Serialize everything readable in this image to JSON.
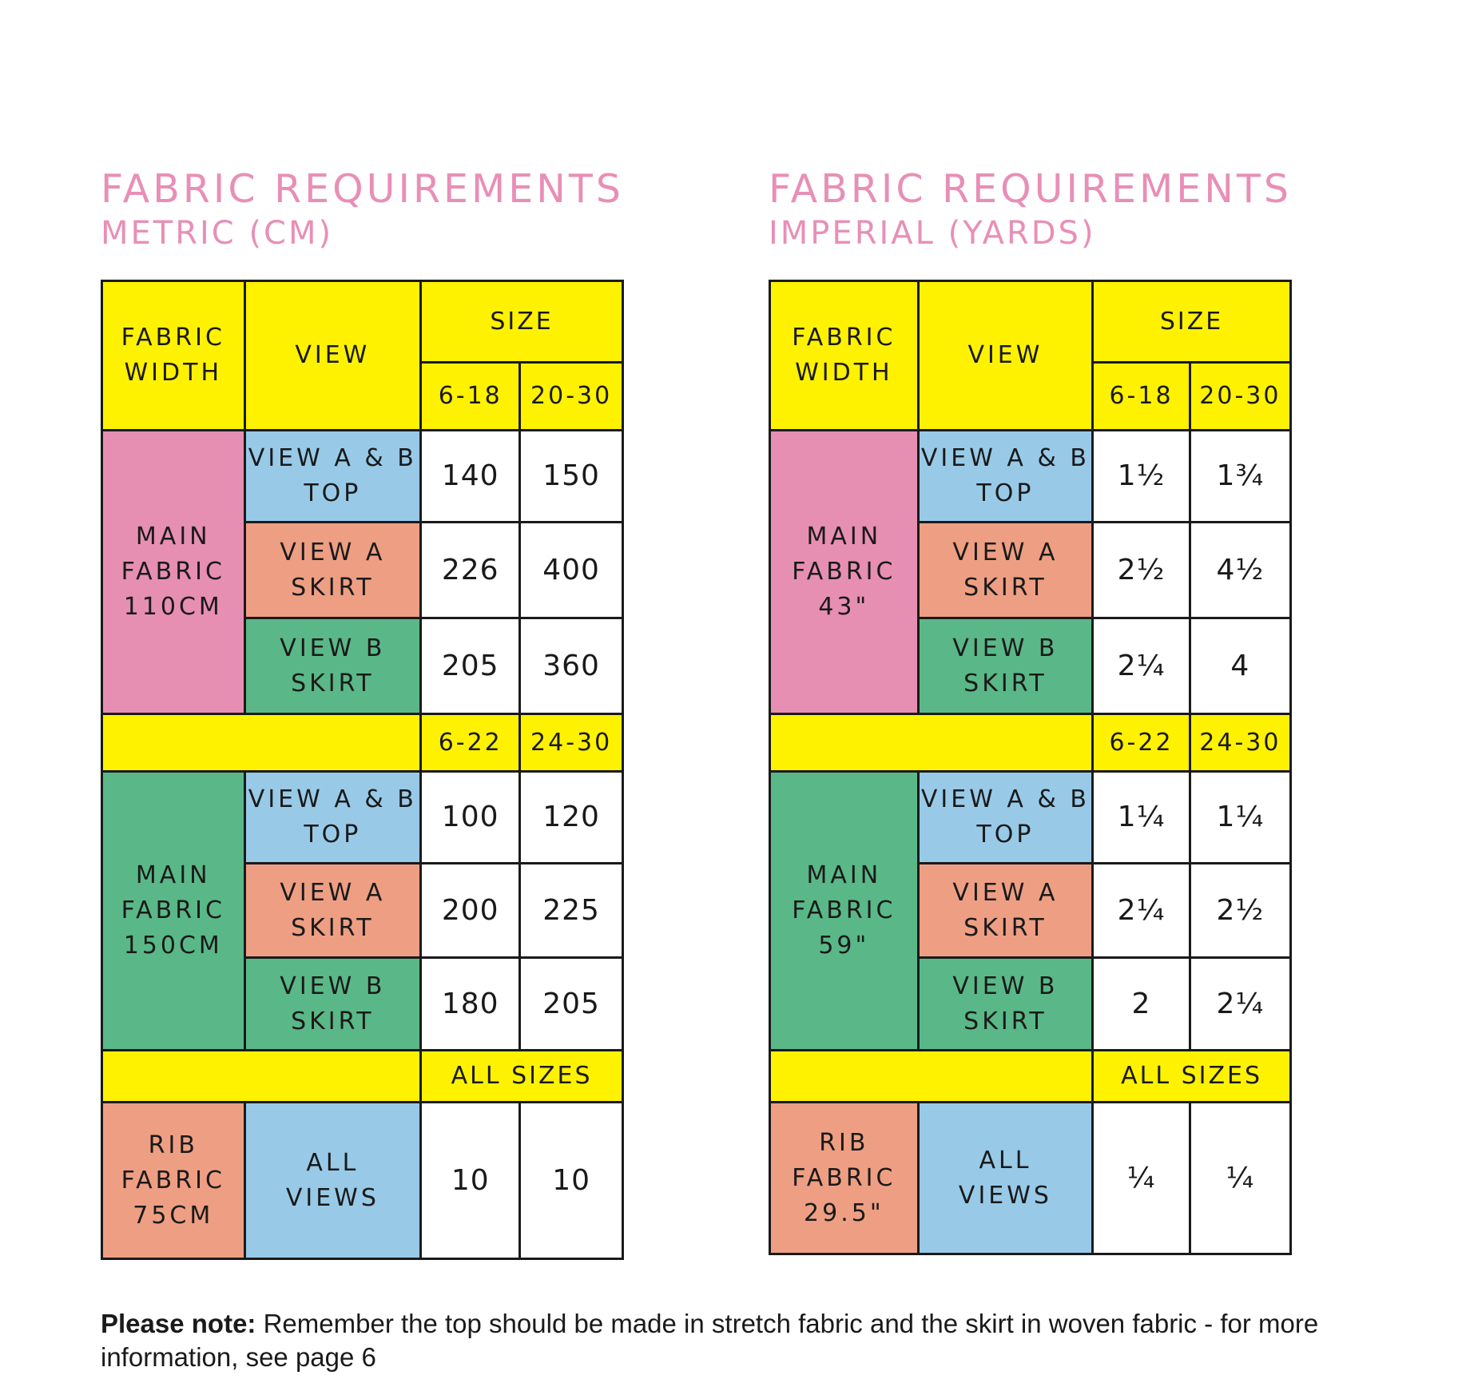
{
  "metric": {
    "title": "FABRIC REQUIREMENTS",
    "subtitle": "METRIC (CM)",
    "header": {
      "fabric_width": "FABRIC\nWIDTH",
      "view": "VIEW",
      "size": "SIZE",
      "size_a": "6-18",
      "size_b": "20-30"
    },
    "main110": {
      "label": "MAIN\nFABRIC\n110CM",
      "rows": [
        {
          "view": "VIEW A & B\nTOP",
          "a": "140",
          "b": "150"
        },
        {
          "view": "VIEW A\nSKIRT",
          "a": "226",
          "b": "400"
        },
        {
          "view": "VIEW B\nSKIRT",
          "a": "205",
          "b": "360"
        }
      ]
    },
    "mid_sizes": {
      "a": "6-22",
      "b": "24-30"
    },
    "main150": {
      "label": "MAIN\nFABRIC\n150CM",
      "rows": [
        {
          "view": "VIEW A & B\nTOP",
          "a": "100",
          "b": "120"
        },
        {
          "view": "VIEW A\nSKIRT",
          "a": "200",
          "b": "225"
        },
        {
          "view": "VIEW B\nSKIRT",
          "a": "180",
          "b": "205"
        }
      ]
    },
    "all_sizes": "ALL SIZES",
    "rib": {
      "label": "RIB\nFABRIC\n75CM",
      "view": "ALL\nVIEWS",
      "a": "10",
      "b": "10"
    }
  },
  "imperial": {
    "title": "FABRIC REQUIREMENTS",
    "subtitle": "IMPERIAL (YARDS)",
    "header": {
      "fabric_width": "FABRIC\nWIDTH",
      "view": "VIEW",
      "size": "SIZE",
      "size_a": "6-18",
      "size_b": "20-30"
    },
    "main43": {
      "label": "MAIN\nFABRIC\n43\"",
      "rows": [
        {
          "view": "VIEW A & B\nTOP",
          "a": "1½",
          "b": "1¾"
        },
        {
          "view": "VIEW A\nSKIRT",
          "a": "2½",
          "b": "4½"
        },
        {
          "view": "VIEW B\nSKIRT",
          "a": "2¼",
          "b": "4"
        }
      ]
    },
    "mid_sizes": {
      "a": "6-22",
      "b": "24-30"
    },
    "main59": {
      "label": "MAIN\nFABRIC\n59\"",
      "rows": [
        {
          "view": "VIEW A & B\nTOP",
          "a": "1¼",
          "b": "1¼"
        },
        {
          "view": "VIEW A\nSKIRT",
          "a": "2¼",
          "b": "2½"
        },
        {
          "view": "VIEW B\nSKIRT",
          "a": "2",
          "b": "2¼"
        }
      ]
    },
    "all_sizes": "ALL SIZES",
    "rib": {
      "label": "RIB\nFABRIC\n29.5\"",
      "view": "ALL\nVIEWS",
      "a": "¼",
      "b": "¼"
    }
  },
  "note": {
    "bold": "Please note:",
    "text": " Remember the top should be made in stretch fabric and the skirt in woven fabric - for more information, see page 6"
  },
  "colors": {
    "title": "#e88fb7",
    "yellow": "#fff200",
    "pink": "#e78fb3",
    "blue": "#98cae8",
    "salmon": "#ee9f83",
    "green": "#5ab888"
  }
}
